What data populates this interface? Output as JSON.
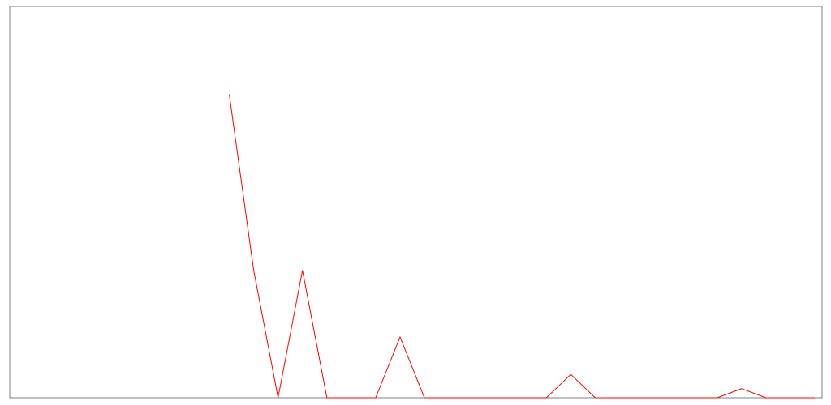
{
  "chart_data": {
    "type": "line",
    "x": [
      0,
      1,
      2,
      3,
      4,
      5,
      6,
      7,
      8,
      9,
      10,
      11,
      12,
      13,
      14,
      15,
      16,
      17,
      18,
      19,
      20,
      21,
      22,
      23,
      24,
      25,
      26,
      27,
      28,
      29,
      30,
      31,
      32,
      33
    ],
    "series": [
      {
        "values": [
          null,
          null,
          null,
          null,
          null,
          null,
          null,
          null,
          null,
          1.0,
          0.42,
          0,
          0.42,
          0,
          0,
          0,
          0.2,
          0,
          0,
          0,
          0,
          0,
          0,
          0.077,
          0,
          0,
          0,
          0,
          0,
          0,
          0.03,
          0,
          0,
          0
        ],
        "color": "#ff0000"
      }
    ],
    "xlim": [
      0,
      33.3
    ],
    "ylim": [
      0,
      1.29
    ],
    "grid": false,
    "legend": "none",
    "frame_color": "#808080"
  }
}
